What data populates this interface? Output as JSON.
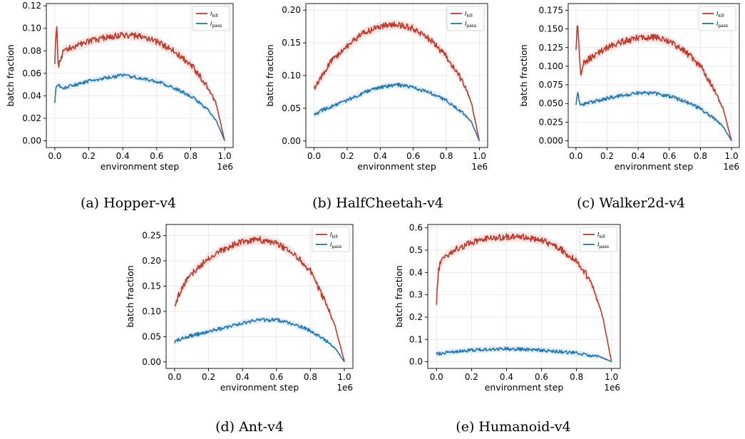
{
  "chart_data": [
    {
      "type": "line",
      "caption": "(a) Hopper-v4",
      "xlabel": "environment step",
      "ylabel": "batch fraction",
      "x_offset_text": "1e6",
      "xlim": [
        -0.05,
        1.05
      ],
      "ylim": [
        -0.006,
        0.122
      ],
      "xticks": [
        0.0,
        0.2,
        0.4,
        0.6,
        0.8,
        1.0
      ],
      "xtick_labels": [
        "0.0",
        "0.2",
        "0.4",
        "0.6",
        "0.8",
        "1.0"
      ],
      "yticks": [
        0.0,
        0.02,
        0.04,
        0.06,
        0.08,
        0.1,
        0.12
      ],
      "ytick_labels": [
        "0.00",
        "0.02",
        "0.04",
        "0.06",
        "0.08",
        "0.10",
        "0.12"
      ],
      "grid": true,
      "legend": "top-right",
      "series": [
        {
          "name": "I_kill",
          "label_main": "I",
          "label_sub": "kill",
          "color": "#c0392b",
          "x": [
            0,
            0.01,
            0.02,
            0.05,
            0.1,
            0.2,
            0.3,
            0.4,
            0.5,
            0.6,
            0.7,
            0.8,
            0.9,
            0.95,
            1.0
          ],
          "y": [
            0.07,
            0.105,
            0.065,
            0.08,
            0.083,
            0.088,
            0.092,
            0.094,
            0.093,
            0.088,
            0.08,
            0.068,
            0.048,
            0.033,
            0.0
          ]
        },
        {
          "name": "I_pass",
          "label_main": "I",
          "label_sub": "pass",
          "color": "#1f77b4",
          "x": [
            0,
            0.01,
            0.05,
            0.1,
            0.2,
            0.3,
            0.4,
            0.5,
            0.6,
            0.7,
            0.8,
            0.9,
            0.95,
            1.0
          ],
          "y": [
            0.035,
            0.05,
            0.047,
            0.049,
            0.053,
            0.056,
            0.058,
            0.056,
            0.053,
            0.047,
            0.04,
            0.028,
            0.018,
            0.0
          ]
        }
      ]
    },
    {
      "type": "line",
      "caption": "(b) HalfCheetah-v4",
      "xlabel": "environment step",
      "ylabel": "batch fraction",
      "x_offset_text": "1e6",
      "xlim": [
        -0.05,
        1.05
      ],
      "ylim": [
        -0.01,
        0.21
      ],
      "xticks": [
        0.0,
        0.2,
        0.4,
        0.6,
        0.8,
        1.0
      ],
      "xtick_labels": [
        "0.0",
        "0.2",
        "0.4",
        "0.6",
        "0.8",
        "1.0"
      ],
      "yticks": [
        0.0,
        0.05,
        0.1,
        0.15,
        0.2
      ],
      "ytick_labels": [
        "0.00",
        "0.05",
        "0.10",
        "0.15",
        "0.20"
      ],
      "grid": true,
      "legend": "top-right",
      "series": [
        {
          "name": "I_kill",
          "label_main": "I",
          "label_sub": "kill",
          "color": "#c0392b",
          "x": [
            0,
            0.05,
            0.1,
            0.2,
            0.3,
            0.4,
            0.5,
            0.6,
            0.7,
            0.8,
            0.9,
            0.95,
            1.0
          ],
          "y": [
            0.08,
            0.1,
            0.12,
            0.145,
            0.165,
            0.175,
            0.178,
            0.172,
            0.155,
            0.13,
            0.09,
            0.06,
            0.0
          ]
        },
        {
          "name": "I_pass",
          "label_main": "I",
          "label_sub": "pass",
          "color": "#1f77b4",
          "x": [
            0,
            0.05,
            0.1,
            0.2,
            0.3,
            0.4,
            0.5,
            0.6,
            0.7,
            0.8,
            0.9,
            0.95,
            1.0
          ],
          "y": [
            0.04,
            0.047,
            0.052,
            0.062,
            0.074,
            0.082,
            0.086,
            0.082,
            0.074,
            0.062,
            0.043,
            0.03,
            0.0
          ]
        }
      ]
    },
    {
      "type": "line",
      "caption": "(c) Walker2d-v4",
      "xlabel": "environment step",
      "ylabel": "batch fraction",
      "x_offset_text": "1e6",
      "xlim": [
        -0.05,
        1.05
      ],
      "ylim": [
        -0.009,
        0.184
      ],
      "xticks": [
        0.0,
        0.2,
        0.4,
        0.6,
        0.8,
        1.0
      ],
      "xtick_labels": [
        "0.0",
        "0.2",
        "0.4",
        "0.6",
        "0.8",
        "1.0"
      ],
      "yticks": [
        0.0,
        0.025,
        0.05,
        0.075,
        0.1,
        0.125,
        0.15,
        0.175
      ],
      "ytick_labels": [
        "0.000",
        "0.025",
        "0.050",
        "0.075",
        "0.100",
        "0.125",
        "0.150",
        "0.175"
      ],
      "grid": true,
      "legend": "top-right",
      "series": [
        {
          "name": "I_kill",
          "label_main": "I",
          "label_sub": "kill",
          "color": "#c0392b",
          "x": [
            0,
            0.01,
            0.03,
            0.05,
            0.1,
            0.2,
            0.3,
            0.4,
            0.5,
            0.6,
            0.7,
            0.8,
            0.9,
            0.95,
            1.0
          ],
          "y": [
            0.12,
            0.16,
            0.085,
            0.105,
            0.112,
            0.125,
            0.133,
            0.138,
            0.139,
            0.133,
            0.12,
            0.1,
            0.065,
            0.04,
            0.0
          ]
        },
        {
          "name": "I_pass",
          "label_main": "I",
          "label_sub": "pass",
          "color": "#1f77b4",
          "x": [
            0,
            0.01,
            0.03,
            0.1,
            0.2,
            0.3,
            0.4,
            0.5,
            0.6,
            0.7,
            0.8,
            0.9,
            0.95,
            1.0
          ],
          "y": [
            0.05,
            0.065,
            0.048,
            0.052,
            0.057,
            0.061,
            0.064,
            0.064,
            0.06,
            0.053,
            0.043,
            0.028,
            0.018,
            0.0
          ]
        }
      ]
    },
    {
      "type": "line",
      "caption": "(d) Ant-v4",
      "xlabel": "environment step",
      "ylabel": "batch fraction",
      "x_offset_text": "1e6",
      "xlim": [
        -0.05,
        1.05
      ],
      "ylim": [
        -0.013,
        0.272
      ],
      "xticks": [
        0.0,
        0.2,
        0.4,
        0.6,
        0.8,
        1.0
      ],
      "xtick_labels": [
        "0.0",
        "0.2",
        "0.4",
        "0.6",
        "0.8",
        "1.0"
      ],
      "yticks": [
        0.0,
        0.05,
        0.1,
        0.15,
        0.2,
        0.25
      ],
      "ytick_labels": [
        "0.00",
        "0.05",
        "0.10",
        "0.15",
        "0.20",
        "0.25"
      ],
      "grid": true,
      "legend": "top-right",
      "series": [
        {
          "name": "I_kill",
          "label_main": "I",
          "label_sub": "kill",
          "color": "#c0392b",
          "x": [
            0,
            0.02,
            0.05,
            0.1,
            0.2,
            0.3,
            0.4,
            0.5,
            0.6,
            0.7,
            0.8,
            0.9,
            0.95,
            1.0
          ],
          "y": [
            0.11,
            0.13,
            0.15,
            0.175,
            0.205,
            0.225,
            0.238,
            0.242,
            0.235,
            0.215,
            0.18,
            0.11,
            0.065,
            0.0
          ]
        },
        {
          "name": "I_pass",
          "label_main": "I",
          "label_sub": "pass",
          "color": "#1f77b4",
          "x": [
            0,
            0.05,
            0.1,
            0.2,
            0.3,
            0.4,
            0.5,
            0.6,
            0.7,
            0.8,
            0.9,
            0.95,
            1.0
          ],
          "y": [
            0.04,
            0.048,
            0.052,
            0.06,
            0.068,
            0.077,
            0.083,
            0.083,
            0.075,
            0.062,
            0.04,
            0.025,
            0.0
          ]
        }
      ]
    },
    {
      "type": "line",
      "caption": "(e) Humanoid-v4",
      "xlabel": "environment step",
      "ylabel": "batch fraction",
      "x_offset_text": "1e6",
      "xlim": [
        -0.05,
        1.05
      ],
      "ylim": [
        -0.03,
        0.615
      ],
      "xticks": [
        0.0,
        0.2,
        0.4,
        0.6,
        0.8,
        1.0
      ],
      "xtick_labels": [
        "0.0",
        "0.2",
        "0.4",
        "0.6",
        "0.8",
        "1.0"
      ],
      "yticks": [
        0.0,
        0.1,
        0.2,
        0.3,
        0.4,
        0.5,
        0.6
      ],
      "ytick_labels": [
        "0.0",
        "0.1",
        "0.2",
        "0.3",
        "0.4",
        "0.5",
        "0.6"
      ],
      "grid": true,
      "legend": "top-right",
      "series": [
        {
          "name": "I_kill",
          "label_main": "I",
          "label_sub": "kill",
          "color": "#c0392b",
          "x": [
            0,
            0.01,
            0.02,
            0.05,
            0.1,
            0.2,
            0.3,
            0.4,
            0.5,
            0.6,
            0.7,
            0.8,
            0.85,
            0.9,
            0.95,
            1.0
          ],
          "y": [
            0.26,
            0.4,
            0.44,
            0.47,
            0.5,
            0.535,
            0.553,
            0.56,
            0.558,
            0.545,
            0.51,
            0.45,
            0.4,
            0.32,
            0.2,
            0.0
          ]
        },
        {
          "name": "I_pass",
          "label_main": "I",
          "label_sub": "pass",
          "color": "#1f77b4",
          "x": [
            0,
            0.05,
            0.1,
            0.2,
            0.3,
            0.4,
            0.5,
            0.6,
            0.7,
            0.8,
            0.9,
            0.95,
            1.0
          ],
          "y": [
            0.035,
            0.04,
            0.045,
            0.052,
            0.056,
            0.058,
            0.056,
            0.052,
            0.046,
            0.038,
            0.027,
            0.018,
            0.0
          ]
        }
      ]
    }
  ]
}
